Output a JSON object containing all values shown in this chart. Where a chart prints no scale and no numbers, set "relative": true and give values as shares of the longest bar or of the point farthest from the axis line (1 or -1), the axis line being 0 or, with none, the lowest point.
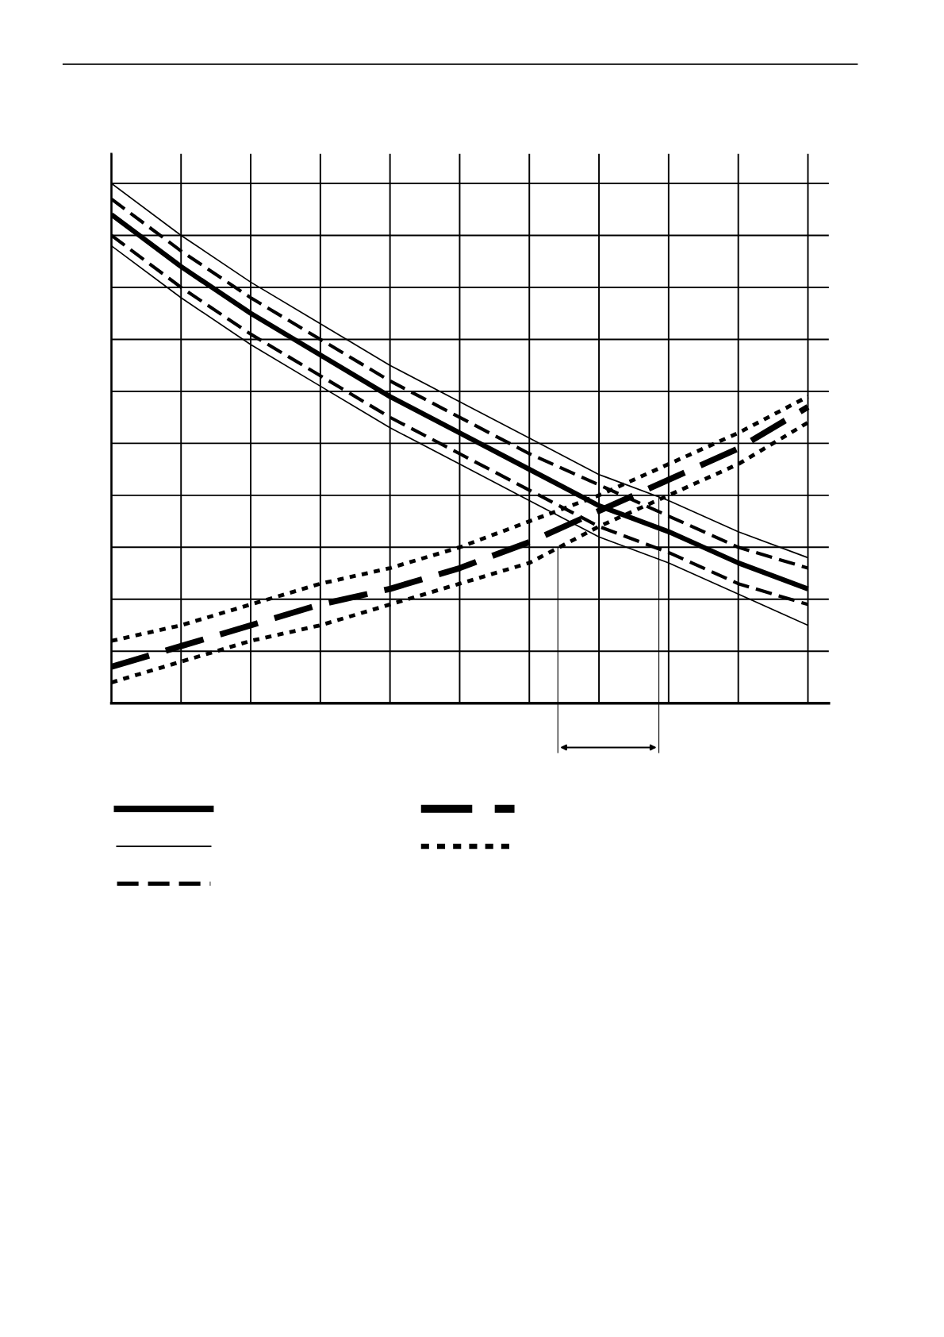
{
  "chart_data": {
    "type": "line",
    "relative": true,
    "grid": true,
    "tick_labels": false,
    "legend": false,
    "categories": [
      null,
      null,
      null,
      null,
      null,
      null,
      null,
      null,
      null,
      null,
      null
    ],
    "series": [
      {
        "color": "#000000",
        "line_style": "solid",
        "values": [
          0.94,
          0.84,
          0.75,
          0.67,
          0.59,
          0.52,
          0.45,
          0.38,
          0.33,
          0.27,
          0.22
        ]
      },
      {
        "color": "#000000",
        "line_style": "solid",
        "values": [
          1.0,
          0.9,
          0.81,
          0.73,
          0.65,
          0.58,
          0.51,
          0.44,
          0.39,
          0.33,
          0.28
        ]
      },
      {
        "color": "#000000",
        "line_style": "dashed",
        "values": [
          0.97,
          0.87,
          0.78,
          0.7,
          0.62,
          0.55,
          0.48,
          0.42,
          0.36,
          0.3,
          0.26
        ]
      },
      {
        "color": "#000000",
        "line_style": "dashed",
        "values": [
          0.9,
          0.8,
          0.71,
          0.63,
          0.55,
          0.48,
          0.41,
          0.34,
          0.29,
          0.23,
          0.19
        ]
      },
      {
        "color": "#000000",
        "line_style": "solid",
        "values": [
          0.88,
          0.78,
          0.69,
          0.61,
          0.53,
          0.46,
          0.39,
          0.32,
          0.27,
          0.21,
          0.15
        ]
      },
      {
        "color": "#000000",
        "line_style": "dashed",
        "values": [
          0.07,
          0.11,
          0.15,
          0.19,
          0.22,
          0.26,
          0.31,
          0.37,
          0.43,
          0.49,
          0.57
        ]
      },
      {
        "color": "#000000",
        "line_style": "dotted",
        "values": [
          0.12,
          0.15,
          0.19,
          0.23,
          0.26,
          0.3,
          0.35,
          0.4,
          0.46,
          0.52,
          0.59
        ]
      },
      {
        "color": "#000000",
        "line_style": "dotted",
        "values": [
          0.04,
          0.08,
          0.12,
          0.15,
          0.19,
          0.23,
          0.27,
          0.34,
          0.4,
          0.46,
          0.54
        ]
      }
    ]
  }
}
